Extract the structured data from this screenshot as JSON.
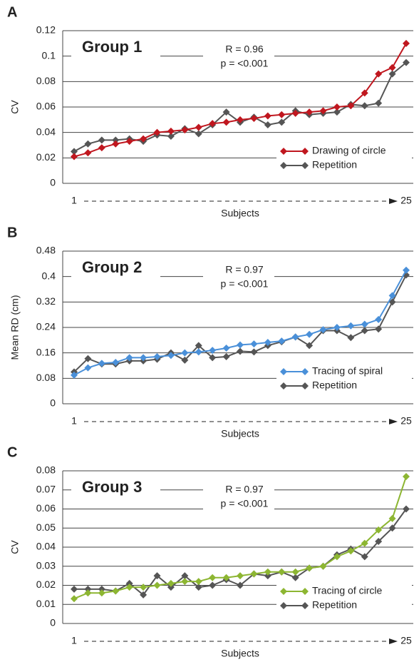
{
  "chart_data": [
    {
      "type": "line",
      "panel_label": "A",
      "title": "Group 1",
      "annotations": [
        "R = 0.96",
        "p = <0.001"
      ],
      "y_label": "CV",
      "x_label": "Subjects",
      "x": [
        1,
        2,
        3,
        4,
        5,
        6,
        7,
        8,
        9,
        10,
        11,
        12,
        13,
        14,
        15,
        16,
        17,
        18,
        19,
        20,
        21,
        22,
        23,
        24,
        25
      ],
      "xlim": [
        1,
        25
      ],
      "xticks": [
        1,
        25
      ],
      "ylim": [
        0,
        0.12
      ],
      "yticks": [
        0,
        0.02,
        0.04,
        0.06,
        0.08,
        0.1,
        0.12
      ],
      "grid": true,
      "legend": "lower right",
      "series": [
        {
          "name": "Drawing of circle",
          "color": "#c0171f",
          "values": [
            0.021,
            0.024,
            0.028,
            0.031,
            0.033,
            0.035,
            0.04,
            0.041,
            0.042,
            0.044,
            0.047,
            0.048,
            0.05,
            0.051,
            0.053,
            0.054,
            0.055,
            0.056,
            0.057,
            0.06,
            0.061,
            0.071,
            0.086,
            0.091,
            0.11
          ]
        },
        {
          "name": "Repetition",
          "color": "#555555",
          "values": [
            0.025,
            0.031,
            0.034,
            0.034,
            0.035,
            0.033,
            0.038,
            0.037,
            0.043,
            0.039,
            0.046,
            0.056,
            0.048,
            0.052,
            0.046,
            0.048,
            0.057,
            0.054,
            0.055,
            0.056,
            0.062,
            0.061,
            0.063,
            0.086,
            0.095
          ]
        }
      ]
    },
    {
      "type": "line",
      "panel_label": "B",
      "title": "Group 2",
      "annotations": [
        "R = 0.97",
        "p = <0.001"
      ],
      "y_label": "Mean RD (cm)",
      "x_label": "Subjects",
      "x": [
        1,
        2,
        3,
        4,
        5,
        6,
        7,
        8,
        9,
        10,
        11,
        12,
        13,
        14,
        15,
        16,
        17,
        18,
        19,
        20,
        21,
        22,
        23,
        24,
        25
      ],
      "xlim": [
        1,
        25
      ],
      "xticks": [
        1,
        25
      ],
      "ylim": [
        0,
        0.48
      ],
      "yticks": [
        0,
        0.08,
        0.16,
        0.24,
        0.32,
        0.4,
        0.48
      ],
      "grid": true,
      "legend": "lower right",
      "series": [
        {
          "name": "Tracing of spiral",
          "color": "#4a90d9",
          "values": [
            0.09,
            0.113,
            0.127,
            0.13,
            0.145,
            0.145,
            0.148,
            0.152,
            0.16,
            0.163,
            0.168,
            0.175,
            0.185,
            0.188,
            0.193,
            0.197,
            0.21,
            0.218,
            0.233,
            0.24,
            0.245,
            0.25,
            0.265,
            0.34,
            0.42
          ]
        },
        {
          "name": "Repetition",
          "color": "#555555",
          "values": [
            0.1,
            0.142,
            0.125,
            0.125,
            0.135,
            0.135,
            0.14,
            0.16,
            0.137,
            0.183,
            0.145,
            0.148,
            0.165,
            0.163,
            0.183,
            0.195,
            0.21,
            0.183,
            0.23,
            0.23,
            0.208,
            0.23,
            0.235,
            0.32,
            0.405
          ]
        }
      ]
    },
    {
      "type": "line",
      "panel_label": "C",
      "title": "Group 3",
      "annotations": [
        "R = 0.97",
        "p = <0.001"
      ],
      "y_label": "CV",
      "x_label": "Subjects",
      "x": [
        1,
        2,
        3,
        4,
        5,
        6,
        7,
        8,
        9,
        10,
        11,
        12,
        13,
        14,
        15,
        16,
        17,
        18,
        19,
        20,
        21,
        22,
        23,
        24,
        25
      ],
      "xlim": [
        1,
        25
      ],
      "xticks": [
        1,
        25
      ],
      "ylim": [
        0,
        0.08
      ],
      "yticks": [
        0,
        0.01,
        0.02,
        0.03,
        0.04,
        0.05,
        0.06,
        0.07,
        0.08
      ],
      "grid": true,
      "legend": "lower right",
      "series": [
        {
          "name": "Tracing of circle",
          "color": "#8db632",
          "values": [
            0.013,
            0.016,
            0.016,
            0.017,
            0.019,
            0.019,
            0.02,
            0.021,
            0.022,
            0.022,
            0.024,
            0.024,
            0.025,
            0.026,
            0.027,
            0.027,
            0.027,
            0.029,
            0.03,
            0.035,
            0.038,
            0.042,
            0.049,
            0.055,
            0.077
          ]
        },
        {
          "name": "Repetition",
          "color": "#555555",
          "values": [
            0.018,
            0.018,
            0.018,
            0.017,
            0.021,
            0.015,
            0.025,
            0.019,
            0.025,
            0.019,
            0.02,
            0.023,
            0.02,
            0.026,
            0.025,
            0.027,
            0.024,
            0.029,
            0.03,
            0.036,
            0.039,
            0.035,
            0.043,
            0.05,
            0.06
          ]
        }
      ]
    }
  ]
}
